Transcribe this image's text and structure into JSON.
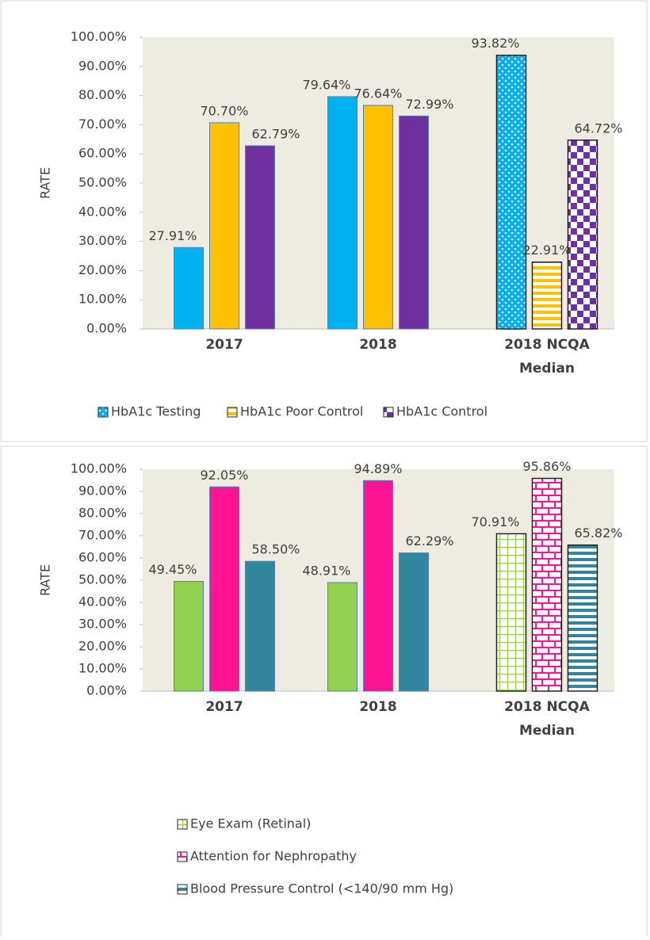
{
  "chart_data": [
    {
      "type": "bar",
      "y_label": "RATE",
      "categories": [
        "2017",
        "2018",
        "2018 NCQA Median"
      ],
      "ylim": [
        0,
        100
      ],
      "yticks": [
        {
          "value": 0,
          "label": "0.00%"
        },
        {
          "value": 10,
          "label": "10.00%"
        },
        {
          "value": 20,
          "label": "20.00%"
        },
        {
          "value": 30,
          "label": "30.00%"
        },
        {
          "value": 40,
          "label": "40.00%"
        },
        {
          "value": 50,
          "label": "50.00%"
        },
        {
          "value": 60,
          "label": "60.00%"
        },
        {
          "value": 70,
          "label": "70.00%"
        },
        {
          "value": 80,
          "label": "80.00%"
        },
        {
          "value": 90,
          "label": "90.00%"
        },
        {
          "value": 100,
          "label": "100.00%"
        }
      ],
      "legend": "bottom-horizontal",
      "series": [
        {
          "name": "HbA1c Testing",
          "color": "#00b0f0",
          "pattern": "dots",
          "values": [
            27.91,
            79.64,
            93.82
          ],
          "value_labels": [
            "27.91%",
            "79.64%",
            "93.82%"
          ]
        },
        {
          "name": "HbA1c Poor Control",
          "color": "#ffc000",
          "pattern": "hstripes",
          "values": [
            70.7,
            76.64,
            22.91
          ],
          "value_labels": [
            "70.70%",
            "76.64%",
            "22.91%"
          ]
        },
        {
          "name": "HbA1c Control",
          "color": "#7030a0",
          "pattern": "checker",
          "values": [
            62.79,
            72.99,
            64.72
          ],
          "value_labels": [
            "62.79%",
            "72.99%",
            "64.72%"
          ]
        }
      ]
    },
    {
      "type": "bar",
      "y_label": "RATE",
      "categories": [
        "2017",
        "2018",
        "2018 NCQA Median"
      ],
      "ylim": [
        0,
        100
      ],
      "yticks": [
        {
          "value": 0,
          "label": "0.00%"
        },
        {
          "value": 10,
          "label": "10.00%"
        },
        {
          "value": 20,
          "label": "20.00%"
        },
        {
          "value": 30,
          "label": "30.00%"
        },
        {
          "value": 40,
          "label": "40.00%"
        },
        {
          "value": 50,
          "label": "50.00%"
        },
        {
          "value": 60,
          "label": "60.00%"
        },
        {
          "value": 70,
          "label": "70.00%"
        },
        {
          "value": 80,
          "label": "80.00%"
        },
        {
          "value": 90,
          "label": "90.00%"
        },
        {
          "value": 100,
          "label": "100.00%"
        }
      ],
      "legend": "bottom-vertical",
      "series": [
        {
          "name": "Eye Exam (Retinal)",
          "color": "#92d050",
          "pattern": "grid",
          "values": [
            49.45,
            48.91,
            70.91
          ],
          "value_labels": [
            "49.45%",
            "48.91%",
            "70.91%"
          ]
        },
        {
          "name": "Attention for Nephropathy",
          "color": "#ff1493",
          "pattern": "brick",
          "values": [
            92.05,
            94.89,
            95.86
          ],
          "value_labels": [
            "92.05%",
            "94.89%",
            "95.86%"
          ]
        },
        {
          "name": "Blood Pressure Control (<140/90 mm Hg)",
          "color": "#31859c",
          "pattern": "hstripes",
          "values": [
            58.5,
            62.29,
            65.82
          ],
          "value_labels": [
            "58.50%",
            "62.29%",
            "65.82%"
          ]
        }
      ]
    }
  ]
}
